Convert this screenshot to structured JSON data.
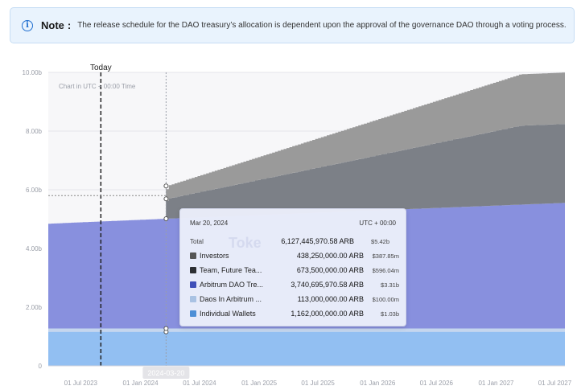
{
  "note": {
    "title": "Note",
    "colon": ":",
    "message": "The release schedule for the DAO treasury’s allocation is dependent upon the approval of the governance DAO through a voting process."
  },
  "chart_data": {
    "type": "area",
    "stacked": true,
    "step": true,
    "title": "",
    "subtitle": "Chart in UTC + 00:00 Time",
    "xlabel": "",
    "ylabel": "",
    "ylim": [
      0,
      10
    ],
    "y_ticks": [
      "0",
      "2.00b",
      "4.00b",
      "6.00b",
      "8.00b",
      "10.00b"
    ],
    "y_tick_values": [
      0,
      2,
      4,
      6,
      8,
      10
    ],
    "x_tick_labels": [
      "01 Jul 2023",
      "01 Jan 2024",
      "01 Jul 2024",
      "01 Jan 2025",
      "01 Jul 2025",
      "01 Jan 2026",
      "01 Jul 2026",
      "01 Jan 2027",
      "01 Jul 2027"
    ],
    "x_tick_dates": [
      "2023-07-01",
      "2024-01-01",
      "2024-07-01",
      "2025-01-01",
      "2025-07-01",
      "2026-01-01",
      "2026-07-01",
      "2027-01-01",
      "2027-07-01"
    ],
    "x_start": "2023-03-23",
    "x_end": "2027-08-01",
    "today_label": "Today",
    "today_date": "2023-09-01",
    "selected_date_label": "2024-03-20",
    "selected_date": "2024-03-20",
    "series": [
      {
        "name": "Individual Wallets",
        "color": "#92bff2",
        "points": [
          [
            "2023-03-23",
            1.162
          ],
          [
            "2027-08-01",
            1.162
          ]
        ]
      },
      {
        "name": "Daos In Arbitrum ...",
        "color": "#c5d6ee",
        "points": [
          [
            "2023-03-23",
            0.113
          ],
          [
            "2027-08-01",
            0.113
          ]
        ]
      },
      {
        "name": "Arbitrum DAO Tre...",
        "color": "#8890de",
        "points": [
          [
            "2023-03-23",
            3.57
          ],
          [
            "2024-03-20",
            3.74
          ],
          [
            "2027-08-01",
            4.28
          ]
        ]
      },
      {
        "name": "Team, Future Tea...",
        "color": "#7c8087",
        "points": [
          [
            "2023-03-23",
            0
          ],
          [
            "2024-03-16",
            0
          ],
          [
            "2024-03-20",
            0.674
          ],
          [
            "2027-03-16",
            2.69
          ],
          [
            "2027-08-01",
            2.69
          ]
        ]
      },
      {
        "name": "Investors",
        "color": "#9a9a9a",
        "points": [
          [
            "2023-03-23",
            0
          ],
          [
            "2024-03-16",
            0
          ],
          [
            "2024-03-20",
            0.438
          ],
          [
            "2027-03-16",
            1.75
          ],
          [
            "2027-08-01",
            1.75
          ]
        ]
      }
    ],
    "horizontal_guide_value": 5.8,
    "grid": true,
    "legend": "tooltip"
  },
  "tooltip": {
    "date": "Mar 20, 2024",
    "timezone": "UTC + 00:00",
    "watermark": "Toke",
    "total": {
      "label": "Total",
      "amount": "6,127,445,970.58 ARB",
      "usd": "$5.42b"
    },
    "rows": [
      {
        "name": "Investors",
        "amount": "438,250,000.00 ARB",
        "usd": "$387.85m",
        "color": "#555555"
      },
      {
        "name": "Team, Future Tea...",
        "amount": "673,500,000.00 ARB",
        "usd": "$596.04m",
        "color": "#2d2f33"
      },
      {
        "name": "Arbitrum DAO Tre...",
        "amount": "3,740,695,970.58 ARB",
        "usd": "$3.31b",
        "color": "#3f4fb8"
      },
      {
        "name": "Daos In Arbitrum ...",
        "amount": "113,000,000.00 ARB",
        "usd": "$100.00m",
        "color": "#a9c2e3"
      },
      {
        "name": "Individual Wallets",
        "amount": "1,162,000,000.00 ARB",
        "usd": "$1.03b",
        "color": "#4d8fd6"
      }
    ]
  },
  "icons": {
    "note": "info-icon"
  }
}
